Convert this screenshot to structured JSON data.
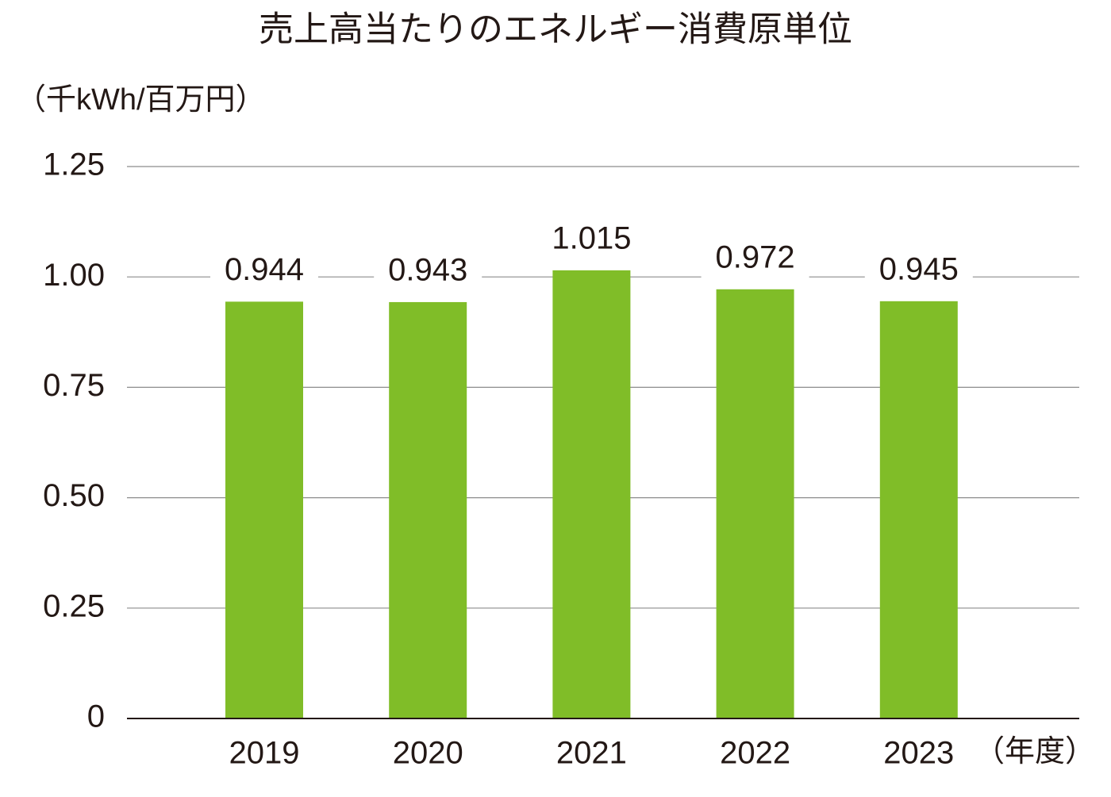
{
  "chart_data": {
    "type": "bar",
    "title": "売上高当たりのエネルギー消費原単位",
    "y_label": "（千kWh/百万円）",
    "x_label": "（年度）",
    "categories": [
      "2019",
      "2020",
      "2021",
      "2022",
      "2023"
    ],
    "values": [
      0.944,
      0.943,
      1.015,
      0.972,
      0.945
    ],
    "color": "#80bd28",
    "ylim": [
      0,
      1.25
    ],
    "yticks": [
      0,
      0.25,
      {
        "value": 0.5,
        "label": "0.50"
      },
      0.75,
      {
        "value": 1,
        "label": "1.00"
      },
      1.25
    ],
    "grid": true
  }
}
